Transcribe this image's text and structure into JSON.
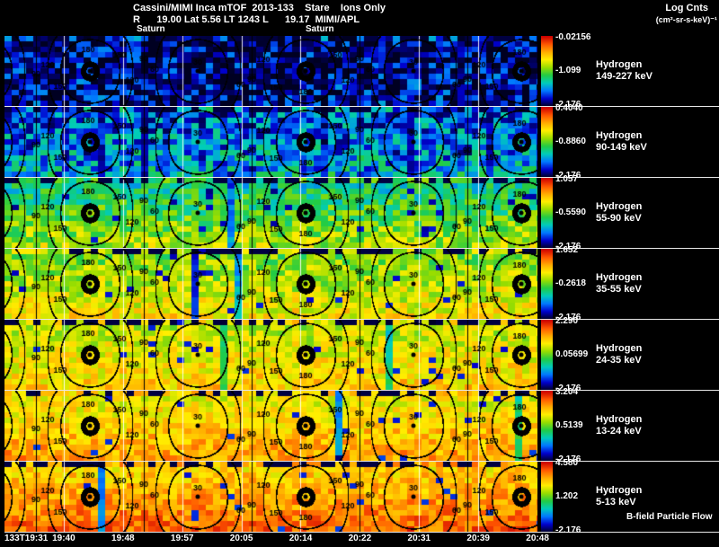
{
  "header": {
    "title": "Cassini/MIMI Inca mTOF  2013-133    Stare    Ions Only",
    "subtitle": "R      19.00 Lat 5.56 LT 1243 L      19.17  MIMI/APL",
    "log_cnts_label": "Log Cnts",
    "log_cnts_units": "(cm²-sr-s-keV)⁻¹",
    "saturn_markers": [
      "Saturn",
      "Saturn"
    ]
  },
  "footer": {
    "bfield_label": "B-field Particle Flow"
  },
  "chart_data": {
    "type": "heatmap",
    "title": "Cassini/MIMI Inca mTOF 2013-133 Stare Ions Only",
    "x_ticks": [
      "133T19:31",
      "19:40",
      "19:48",
      "19:57",
      "20:05",
      "20:14",
      "20:22",
      "20:31",
      "20:39",
      "20:48"
    ],
    "contour_levels": [
      30,
      60,
      90,
      120,
      150,
      180
    ],
    "colormap": [
      "#000022",
      "#0000cc",
      "#0077ff",
      "#00ccbb",
      "#22cc44",
      "#99dd00",
      "#ffee00",
      "#ffaa00",
      "#ff5500",
      "#cc0000"
    ],
    "panels": [
      {
        "species": "Hydrogen",
        "energy": "149-227 keV",
        "cbar_max": "-0.02156",
        "cbar_mid": "-1.099",
        "cbar_min": "-2.176",
        "render": {
          "base": 0.08,
          "grad": 0.05,
          "noise": 0.18
        }
      },
      {
        "species": "Hydrogen",
        "energy": "90-149 keV",
        "cbar_max": "0.4040",
        "cbar_mid": "-0.8860",
        "cbar_min": "-2.176",
        "render": {
          "base": 0.24,
          "grad": 0.12,
          "noise": 0.18
        }
      },
      {
        "species": "Hydrogen",
        "energy": "55-90 keV",
        "cbar_max": "1.057",
        "cbar_mid": "-0.5590",
        "cbar_min": "-2.176",
        "render": {
          "base": 0.47,
          "grad": 0.25,
          "noise": 0.13
        }
      },
      {
        "species": "Hydrogen",
        "energy": "35-55 keV",
        "cbar_max": "1.652",
        "cbar_mid": "-0.2618",
        "cbar_min": "-2.176",
        "render": {
          "base": 0.59,
          "grad": 0.18,
          "noise": 0.12
        }
      },
      {
        "species": "Hydrogen",
        "energy": "24-35 keV",
        "cbar_max": "2.290",
        "cbar_mid": "0.05699",
        "cbar_min": "-2.176",
        "render": {
          "base": 0.65,
          "grad": 0.14,
          "noise": 0.11
        }
      },
      {
        "species": "Hydrogen",
        "energy": "13-24 keV",
        "cbar_max": "3.204",
        "cbar_mid": "0.5139",
        "cbar_min": "-2.176",
        "render": {
          "base": 0.71,
          "grad": 0.18,
          "noise": 0.1
        }
      },
      {
        "species": "Hydrogen",
        "energy": "5-13 keV",
        "cbar_max": "4.580",
        "cbar_mid": "1.202",
        "cbar_min": "-2.176",
        "render": {
          "base": 0.78,
          "grad": 0.2,
          "noise": 0.1
        }
      }
    ]
  }
}
